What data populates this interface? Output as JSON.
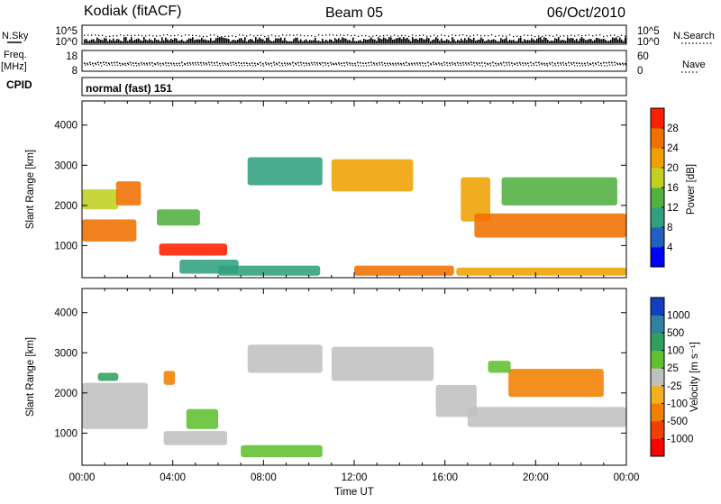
{
  "header": {
    "radar": "Kodiak (fitACF)",
    "beam": "Beam 05",
    "date": "06/Oct/2010"
  },
  "left_labels": {
    "nsky": "N.Sky",
    "freq": "Freq.",
    "mhz": "[MHz]",
    "cpid": "CPID"
  },
  "right_labels": {
    "nsearch": "N.Search",
    "nave": "Nave"
  },
  "cpid_text": "normal (fast) 151",
  "noise_axis": {
    "top": "10^5",
    "bottom": "10^0"
  },
  "freq_axis": {
    "top": "18",
    "bottom": "8"
  },
  "nave_axis": {
    "top": "60",
    "bottom": "0"
  },
  "x_axis": {
    "title": "Time UT",
    "ticks": [
      "00:00",
      "04:00",
      "08:00",
      "12:00",
      "16:00",
      "20:00",
      "00:00"
    ]
  },
  "y_axis": {
    "title": "Slant Range [km]",
    "ticks": [
      "1000",
      "2000",
      "3000",
      "4000"
    ]
  },
  "power_bar": {
    "title": "Power [dB]",
    "ticks": [
      "4",
      "8",
      "12",
      "16",
      "20",
      "24",
      "28"
    ],
    "colors": [
      "#0000ff",
      "#2060c0",
      "#30a080",
      "#50b040",
      "#c0d020",
      "#f0a000",
      "#f07000",
      "#ff2000"
    ]
  },
  "velocity_bar": {
    "title": "Velocity [m s⁻¹]",
    "ticks": [
      "1000",
      "500",
      "100",
      "25",
      "-25",
      "-100",
      "-500",
      "-1000"
    ],
    "colors": [
      "#1040c0",
      "#3080a0",
      "#30a060",
      "#60c030",
      "#c0c0c0",
      "#f0b020",
      "#f08000",
      "#f04000",
      "#ff0000"
    ]
  },
  "chart_data": [
    {
      "type": "heatmap",
      "title": "Power [dB]",
      "xlabel": "Time UT",
      "ylabel": "Slant Range [km]",
      "xlim": [
        "00:00",
        "24:00"
      ],
      "ylim": [
        200,
        4600
      ],
      "zlim": [
        0,
        32
      ],
      "regions": [
        {
          "t0": 0.0,
          "t1": 2.4,
          "r0": 1100,
          "r1": 1650,
          "value": 26
        },
        {
          "t0": 0.0,
          "t1": 1.6,
          "r0": 1900,
          "r1": 2400,
          "value": 18
        },
        {
          "t0": 1.5,
          "t1": 2.6,
          "r0": 2000,
          "r1": 2600,
          "value": 24
        },
        {
          "t0": 3.3,
          "t1": 5.2,
          "r0": 1500,
          "r1": 1900,
          "value": 14
        },
        {
          "t0": 3.4,
          "t1": 6.4,
          "r0": 750,
          "r1": 1050,
          "value": 28
        },
        {
          "t0": 4.3,
          "t1": 6.9,
          "r0": 300,
          "r1": 650,
          "value": 10
        },
        {
          "t0": 6.0,
          "t1": 10.5,
          "r0": 250,
          "r1": 500,
          "value": 9
        },
        {
          "t0": 7.3,
          "t1": 10.6,
          "r0": 2500,
          "r1": 3200,
          "value": 11
        },
        {
          "t0": 11.0,
          "t1": 14.6,
          "r0": 2350,
          "r1": 3150,
          "value": 22
        },
        {
          "t0": 12.0,
          "t1": 16.4,
          "r0": 250,
          "r1": 500,
          "value": 26
        },
        {
          "t0": 16.7,
          "t1": 18.0,
          "r0": 1600,
          "r1": 2700,
          "value": 20
        },
        {
          "t0": 17.3,
          "t1": 24.0,
          "r0": 1200,
          "r1": 1800,
          "value": 24
        },
        {
          "t0": 18.5,
          "t1": 23.6,
          "r0": 2000,
          "r1": 2700,
          "value": 14
        },
        {
          "t0": 16.5,
          "t1": 24.0,
          "r0": 250,
          "r1": 450,
          "value": 20
        }
      ]
    },
    {
      "type": "heatmap",
      "title": "Velocity [m s⁻¹]",
      "xlabel": "Time UT",
      "ylabel": "Slant Range [km]",
      "xlim": [
        "00:00",
        "24:00"
      ],
      "ylim": [
        200,
        4600
      ],
      "zlim": [
        -1000,
        1000
      ],
      "regions": [
        {
          "t0": 0.0,
          "t1": 2.9,
          "r0": 1100,
          "r1": 2250,
          "value": 0
        },
        {
          "t0": 0.7,
          "t1": 1.6,
          "r0": 2300,
          "r1": 2500,
          "value": 100
        },
        {
          "t0": 3.6,
          "t1": 4.1,
          "r0": 2200,
          "r1": 2550,
          "value": -300
        },
        {
          "t0": 3.6,
          "t1": 6.4,
          "r0": 700,
          "r1": 1050,
          "value": 0
        },
        {
          "t0": 4.6,
          "t1": 6.0,
          "r0": 1100,
          "r1": 1600,
          "value": 40
        },
        {
          "t0": 7.0,
          "t1": 10.6,
          "r0": 400,
          "r1": 700,
          "value": 60
        },
        {
          "t0": 7.3,
          "t1": 10.6,
          "r0": 2500,
          "r1": 3200,
          "value": 0
        },
        {
          "t0": 11.0,
          "t1": 15.5,
          "r0": 2300,
          "r1": 3150,
          "value": 0
        },
        {
          "t0": 15.6,
          "t1": 17.4,
          "r0": 1400,
          "r1": 2200,
          "value": 0
        },
        {
          "t0": 17.0,
          "t1": 24.0,
          "r0": 1150,
          "r1": 1650,
          "value": 0
        },
        {
          "t0": 18.8,
          "t1": 23.0,
          "r0": 1900,
          "r1": 2600,
          "value": -400
        },
        {
          "t0": 17.9,
          "t1": 18.9,
          "r0": 2500,
          "r1": 2800,
          "value": 60
        }
      ]
    }
  ]
}
